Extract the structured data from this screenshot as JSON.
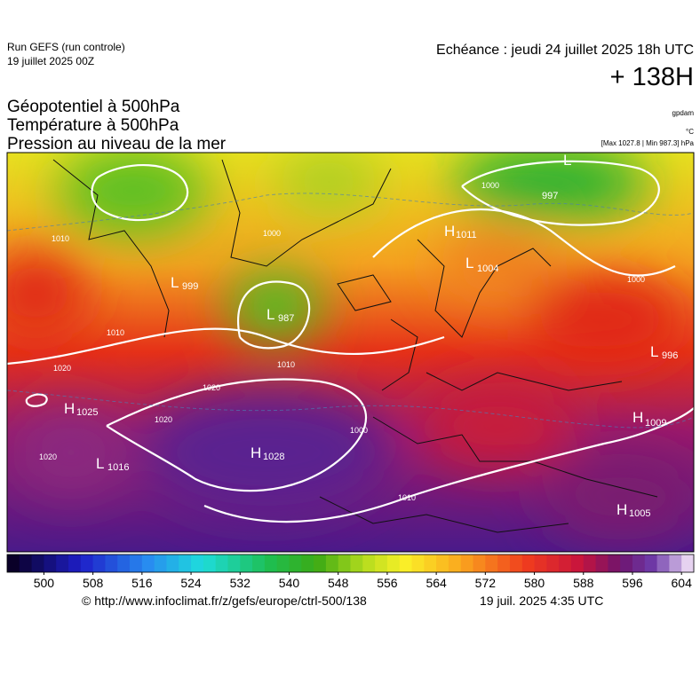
{
  "header": {
    "run": "Run GEFS (run controle)",
    "run_date": "19 juillet 2025 00Z",
    "valid": "Echéance : jeudi 24 juillet 2025 18h UTC",
    "lead": "+ 138H",
    "fields": [
      "Géopotentiel à 500hPa",
      "Température à 500hPa",
      "Pression au niveau de la mer"
    ],
    "unit_geopotential": "gpdam",
    "unit_temperature": "°C",
    "pressure_range": "[Max 1027.8 | Min 987.3] hPa"
  },
  "pressure_centers": [
    {
      "letter": "L",
      "value": "999"
    },
    {
      "letter": "L",
      "value": "987"
    },
    {
      "letter": "H",
      "value": "1011"
    },
    {
      "letter": "L",
      "value": "1004"
    },
    {
      "letter": "H",
      "value": "1025"
    },
    {
      "letter": "L",
      "value": "1016"
    },
    {
      "letter": "H",
      "value": "1028"
    },
    {
      "letter": "L",
      "value": "996"
    },
    {
      "letter": "H",
      "value": "1009"
    },
    {
      "letter": "H",
      "value": "1005"
    },
    {
      "letter": "L",
      "value": "997"
    }
  ],
  "isobar_labels": [
    "1010",
    "1000",
    "1000",
    "1010",
    "1020",
    "1020",
    "1020",
    "1020",
    "1010",
    "1010",
    "1000",
    "1000"
  ],
  "colorbar": {
    "lim": [
      494,
      606
    ],
    "ticks": [
      500,
      508,
      516,
      524,
      532,
      540,
      548,
      556,
      564,
      572,
      580,
      588,
      596,
      604
    ]
  },
  "footer": {
    "url": "© http://www.infoclimat.fr/z/gefs/europe/ctrl-500/138",
    "generated": "19 juil. 2025  4:35 UTC"
  }
}
